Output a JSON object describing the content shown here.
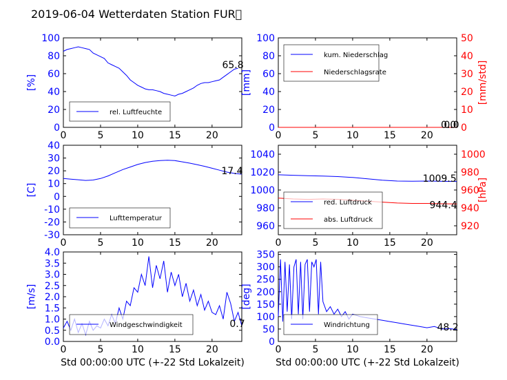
{
  "figure": {
    "title": "2019-06-04 Wetterdaten Station FUR\u0000"
  },
  "colors": {
    "blue": "#0000ff",
    "red": "#ff0000",
    "lightblue": "#8080ff",
    "axis": "#000000"
  },
  "chart_data": [
    {
      "id": "humidity",
      "type": "line",
      "title": "",
      "xlabel": "",
      "ylabel": "[%]",
      "xlim": [
        0,
        24
      ],
      "ylim": [
        0,
        100
      ],
      "xticks": [
        0,
        5,
        10,
        15,
        20
      ],
      "yticks": [
        0,
        20,
        40,
        60,
        80,
        100
      ],
      "legend_position": "lower-left",
      "series": [
        {
          "name": "rel. Luftfeuchte",
          "color": "#0000ff",
          "x": [
            0,
            0.5,
            1,
            1.5,
            2,
            2.5,
            3,
            3.5,
            4,
            4.5,
            5,
            5.5,
            6,
            6.5,
            7,
            7.5,
            8,
            8.5,
            9,
            9.5,
            10,
            10.5,
            11,
            11.5,
            12,
            12.5,
            13,
            13.5,
            14,
            14.5,
            15,
            15.5,
            16,
            16.5,
            17,
            17.5,
            18,
            18.5,
            19,
            19.5,
            20,
            20.5,
            21,
            21.5,
            22,
            22.5,
            23,
            23.5
          ],
          "values": [
            85,
            87,
            88,
            89,
            90,
            89,
            88,
            87,
            83,
            81,
            79,
            77,
            72,
            70,
            68,
            66,
            62,
            58,
            53,
            50,
            47,
            45,
            43,
            42,
            42,
            41,
            40,
            38,
            37,
            36,
            35,
            37,
            38,
            40,
            42,
            44,
            47,
            49,
            50,
            50,
            51,
            52,
            53,
            56,
            59,
            62,
            65,
            66
          ]
        }
      ],
      "annotations": [
        {
          "text": "65.8",
          "x": 22.8,
          "y": 70
        }
      ]
    },
    {
      "id": "precipitation",
      "type": "line",
      "title": "",
      "xlabel": "",
      "ylabel": "[mm]",
      "ylabel_right": "[mm/std]",
      "xlim": [
        0,
        24
      ],
      "ylim": [
        0,
        100
      ],
      "ylim_right": [
        0,
        50
      ],
      "xticks": [
        0,
        5,
        10,
        15,
        20
      ],
      "yticks": [
        0,
        20,
        40,
        60,
        80,
        100
      ],
      "yticks_right": [
        0,
        10,
        20,
        30,
        40,
        50
      ],
      "legend_position": "upper-left",
      "series": [
        {
          "name": "kum. Niederschlag",
          "color": "#0000ff",
          "axis": "left",
          "x": [
            0,
            24
          ],
          "values": [
            0,
            0
          ]
        },
        {
          "name": "Niederschlagsrate",
          "color": "#ff0000",
          "axis": "right",
          "x": [
            0,
            24
          ],
          "values": [
            0,
            0
          ]
        }
      ],
      "annotations": [
        {
          "text": "0.0",
          "x": 22.9,
          "y": 3
        },
        {
          "text": "0.0",
          "x": 23.3,
          "y": 3
        }
      ]
    },
    {
      "id": "temperature",
      "type": "line",
      "title": "",
      "xlabel": "",
      "ylabel": "[C]",
      "xlim": [
        0,
        24
      ],
      "ylim": [
        -30,
        40
      ],
      "xticks": [
        0,
        5,
        10,
        15,
        20
      ],
      "yticks": [
        -30,
        -20,
        -10,
        0,
        10,
        20,
        30,
        40
      ],
      "legend_position": "lower-left",
      "series": [
        {
          "name": "Lufttemperatur",
          "color": "#0000ff",
          "x": [
            0,
            1,
            2,
            3,
            4,
            5,
            6,
            7,
            8,
            9,
            10,
            11,
            12,
            13,
            14,
            15,
            16,
            17,
            18,
            19,
            20,
            21,
            22,
            23,
            24
          ],
          "values": [
            14,
            13.5,
            13,
            12.5,
            12.8,
            14,
            16,
            18.5,
            21,
            23,
            25,
            26.5,
            27.5,
            28,
            28.3,
            28,
            27,
            26,
            24.8,
            23.5,
            22,
            20.5,
            19,
            18,
            17.4
          ]
        }
      ],
      "annotations": [
        {
          "text": "17.4",
          "x": 22.7,
          "y": 20
        }
      ]
    },
    {
      "id": "pressure",
      "type": "line",
      "title": "",
      "xlabel": "",
      "ylabel": "",
      "ylabel_right": "[hPa]",
      "xlim": [
        0,
        24
      ],
      "ylim": [
        950,
        1050
      ],
      "ylim_right": [
        910,
        1010
      ],
      "xticks": [
        0,
        5,
        10,
        15,
        20
      ],
      "yticks": [
        960,
        980,
        1000,
        1020,
        1040
      ],
      "yticks_right": [
        920,
        940,
        960,
        980,
        1000
      ],
      "legend_position": "lower-left",
      "series": [
        {
          "name": "red. Luftdruck",
          "color": "#0000ff",
          "axis": "left",
          "x": [
            0,
            2,
            4,
            6,
            8,
            10,
            12,
            14,
            16,
            18,
            20,
            22,
            24
          ],
          "values": [
            1017,
            1016.5,
            1016,
            1015.5,
            1015,
            1014,
            1012.5,
            1011,
            1010,
            1009.8,
            1010,
            1009.7,
            1009.5
          ]
        },
        {
          "name": "abs. Luftdruck",
          "color": "#ff0000",
          "axis": "right",
          "x": [
            0,
            2,
            4,
            6,
            8,
            10,
            12,
            14,
            16,
            18,
            20,
            22,
            24
          ],
          "values": [
            951,
            950,
            949.5,
            950,
            949.5,
            948.5,
            947.5,
            946.5,
            945.5,
            945,
            945,
            944.6,
            944.4
          ]
        }
      ],
      "annotations": [
        {
          "text": "1009.5",
          "x": 21.7,
          "y": 1013
        },
        {
          "text": "944.4",
          "x": 22.2,
          "y": 983.5
        }
      ]
    },
    {
      "id": "wind_speed",
      "type": "line",
      "title": "",
      "xlabel": "Std 00:00:00 UTC (+-22 Std Lokalzeit)",
      "ylabel": "[m/s]",
      "xlim": [
        0,
        24
      ],
      "ylim": [
        0,
        4
      ],
      "xticks": [
        0,
        5,
        10,
        15,
        20
      ],
      "yticks": [
        0.0,
        0.5,
        1.0,
        1.5,
        2.0,
        2.5,
        3.0,
        3.5,
        4.0
      ],
      "ytick_labels": [
        "0.0",
        "0.5",
        "1.0",
        "1.5",
        "2.0",
        "2.5",
        "3.0",
        "3.5",
        "4.0"
      ],
      "legend_position": "lower-left",
      "series": [
        {
          "name": "Windgeschwindigkeit",
          "color": "#0000ff",
          "x": [
            0,
            0.5,
            1,
            1.5,
            2,
            2.5,
            3,
            3.5,
            4,
            4.5,
            5,
            5.5,
            6,
            6.5,
            7,
            7.5,
            8,
            8.5,
            9,
            9.5,
            10,
            10.5,
            11,
            11.5,
            12,
            12.5,
            13,
            13.5,
            14,
            14.5,
            15,
            15.5,
            16,
            16.5,
            17,
            17.5,
            18,
            18.5,
            19,
            19.5,
            20,
            20.5,
            21,
            21.5,
            22,
            22.5,
            23,
            23.5,
            24
          ],
          "values": [
            0.6,
            0.9,
            0.5,
            1.0,
            0.4,
            0.8,
            0.3,
            0.9,
            0.5,
            0.7,
            0.6,
            1.0,
            0.7,
            1.2,
            0.8,
            1.5,
            1.0,
            1.8,
            1.6,
            2.4,
            2.2,
            3.0,
            2.5,
            3.8,
            2.4,
            3.4,
            2.8,
            3.6,
            2.2,
            3.1,
            2.5,
            3.0,
            2.0,
            2.6,
            1.8,
            2.3,
            1.6,
            2.1,
            1.4,
            1.8,
            1.3,
            1.2,
            1.6,
            1.0,
            2.2,
            1.7,
            0.9,
            1.3,
            0.7
          ]
        }
      ],
      "annotations": [
        {
          "text": "0.7",
          "x": 23.4,
          "y": 0.8
        }
      ]
    },
    {
      "id": "wind_direction",
      "type": "line",
      "title": "",
      "xlabel": "Std 00:00:00 UTC (+-22 Std Lokalzeit)",
      "ylabel": "[deg]",
      "xlim": [
        0,
        24
      ],
      "ylim": [
        0,
        360
      ],
      "xticks": [
        0,
        5,
        10,
        15,
        20
      ],
      "yticks": [
        0,
        50,
        100,
        150,
        200,
        250,
        300,
        350
      ],
      "legend_position": "lower-left",
      "series": [
        {
          "name": "Windrichtung",
          "color": "#0000ff",
          "x": [
            0,
            0.3,
            0.6,
            0.9,
            1.2,
            1.5,
            1.8,
            2.1,
            2.4,
            2.7,
            3.0,
            3.3,
            3.6,
            3.9,
            4.2,
            4.5,
            4.8,
            5.1,
            5.4,
            5.7,
            6.0,
            6.5,
            7,
            7.5,
            8,
            8.5,
            9,
            9.5,
            10,
            11,
            12,
            13,
            14,
            15,
            16,
            17,
            18,
            19,
            20,
            21,
            22,
            23,
            24
          ],
          "values": [
            100,
            330,
            80,
            320,
            120,
            310,
            90,
            300,
            330,
            110,
            320,
            90,
            310,
            330,
            120,
            320,
            300,
            330,
            110,
            320,
            160,
            120,
            140,
            110,
            130,
            100,
            120,
            90,
            110,
            100,
            95,
            90,
            85,
            80,
            75,
            70,
            65,
            60,
            55,
            60,
            50,
            52,
            48
          ]
        }
      ],
      "annotations": [
        {
          "text": "48.2",
          "x": 22.8,
          "y": 58
        }
      ]
    }
  ]
}
